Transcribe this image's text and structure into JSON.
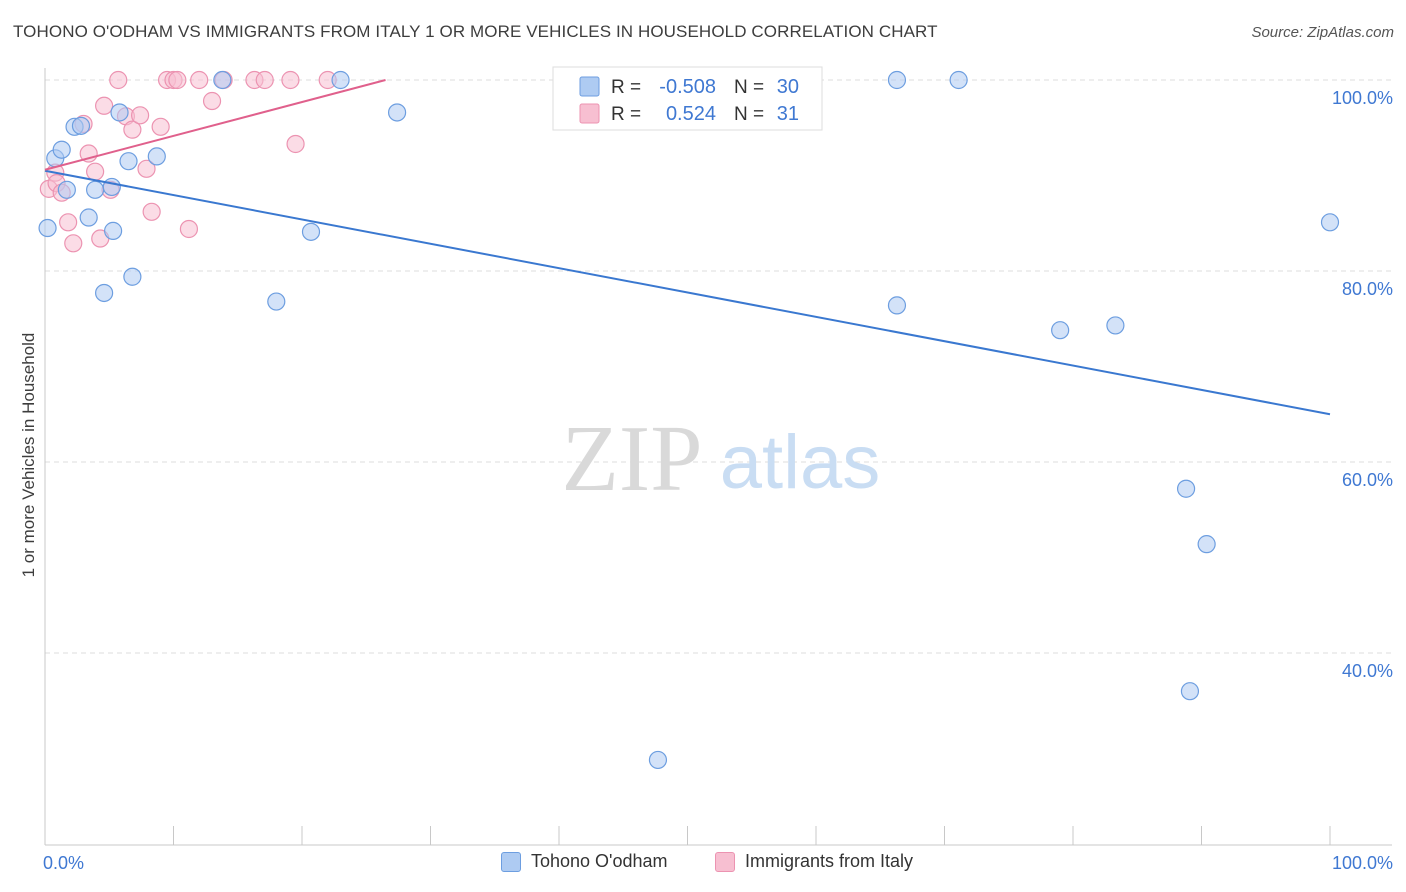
{
  "title": "TOHONO O'ODHAM VS IMMIGRANTS FROM ITALY 1 OR MORE VEHICLES IN HOUSEHOLD CORRELATION CHART",
  "source": "Source: ZipAtlas.com",
  "watermark": {
    "zip": "ZIP",
    "atlas": "atlas"
  },
  "colors": {
    "blue_fill": "#aecbf2",
    "blue_stroke": "#6d9ee0",
    "blue_line": "#3a78d0",
    "pink_fill": "#f7bfd1",
    "pink_stroke": "#ec93b1",
    "pink_line": "#e0608c",
    "tick_text": "#3f78d2",
    "grid": "#dddddd"
  },
  "chart_data": {
    "type": "scatter",
    "title": "TOHONO O'ODHAM VS IMMIGRANTS FROM ITALY 1 OR MORE VEHICLES IN HOUSEHOLD CORRELATION CHART",
    "xlabel": "",
    "ylabel": "1 or more Vehicles in Household",
    "xlim": [
      0,
      100
    ],
    "ylim": [
      20,
      101
    ],
    "x_tick_labels": [
      "0.0%",
      "100.0%"
    ],
    "y_ticks": [
      40,
      60,
      80,
      100
    ],
    "y_tick_labels": [
      "40.0%",
      "60.0%",
      "80.0%",
      "100.0%"
    ],
    "legend_stats": [
      {
        "r_label": "R =",
        "r_value": "-0.508",
        "n_label": "N =",
        "n_value": "30"
      },
      {
        "r_label": "R =",
        "r_value": "0.524",
        "n_label": "N =",
        "n_value": "31"
      }
    ],
    "series": [
      {
        "name": "Tohono O'odham",
        "r": -0.508,
        "n": 30,
        "trend": {
          "x0": 0,
          "y0": 90.5,
          "x1": 100,
          "y1": 65.0
        },
        "points": [
          [
            0.2,
            84.5
          ],
          [
            0.8,
            91.8
          ],
          [
            1.3,
            92.7
          ],
          [
            1.7,
            88.5
          ],
          [
            2.3,
            95.1
          ],
          [
            2.8,
            95.2
          ],
          [
            3.4,
            85.6
          ],
          [
            3.9,
            88.5
          ],
          [
            4.6,
            77.7
          ],
          [
            5.2,
            88.8
          ],
          [
            5.3,
            84.2
          ],
          [
            5.8,
            96.6
          ],
          [
            6.5,
            91.5
          ],
          [
            6.8,
            79.4
          ],
          [
            8.7,
            92.0
          ],
          [
            13.8,
            100.0
          ],
          [
            18.0,
            76.8
          ],
          [
            20.7,
            84.1
          ],
          [
            23.0,
            100.0
          ],
          [
            27.4,
            96.6
          ],
          [
            47.7,
            28.8
          ],
          [
            66.3,
            100.0
          ],
          [
            71.1,
            100.0
          ],
          [
            66.3,
            76.4
          ],
          [
            79.0,
            73.8
          ],
          [
            83.3,
            74.3
          ],
          [
            88.8,
            57.2
          ],
          [
            89.1,
            36.0
          ],
          [
            90.4,
            51.4
          ],
          [
            100.0,
            85.1
          ]
        ]
      },
      {
        "name": "Immigrants from Italy",
        "r": 0.524,
        "n": 31,
        "trend": {
          "x0": 0,
          "y0": 90.6,
          "x1": 26.5,
          "y1": 100.0
        },
        "points": [
          [
            0.3,
            88.6
          ],
          [
            0.8,
            90.3
          ],
          [
            0.9,
            89.2
          ],
          [
            1.3,
            88.2
          ],
          [
            1.8,
            85.1
          ],
          [
            2.2,
            82.9
          ],
          [
            3.0,
            95.4
          ],
          [
            3.4,
            92.3
          ],
          [
            3.9,
            90.4
          ],
          [
            4.3,
            83.4
          ],
          [
            4.6,
            97.3
          ],
          [
            5.1,
            88.5
          ],
          [
            5.7,
            100.0
          ],
          [
            6.3,
            96.2
          ],
          [
            6.8,
            94.8
          ],
          [
            7.4,
            96.3
          ],
          [
            7.9,
            90.7
          ],
          [
            8.3,
            86.2
          ],
          [
            9.0,
            95.1
          ],
          [
            9.5,
            100.0
          ],
          [
            10.0,
            100.0
          ],
          [
            10.3,
            100.0
          ],
          [
            11.2,
            84.4
          ],
          [
            12.0,
            100.0
          ],
          [
            13.0,
            97.8
          ],
          [
            13.9,
            100.0
          ],
          [
            16.3,
            100.0
          ],
          [
            17.1,
            100.0
          ],
          [
            19.1,
            100.0
          ],
          [
            19.5,
            93.3
          ],
          [
            22.0,
            100.0
          ]
        ]
      }
    ]
  }
}
